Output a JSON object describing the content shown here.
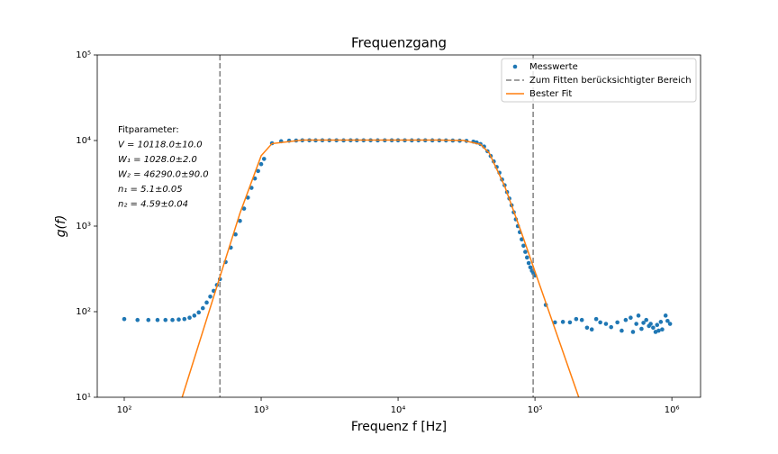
{
  "chart_data": {
    "type": "scatter",
    "title": "Frequenzgang",
    "xlabel": "Frequenz f [Hz]",
    "ylabel": "g(f)",
    "xscale": "log",
    "yscale": "log",
    "xlim": [
      63.5,
      1620000
    ],
    "ylim": [
      10,
      100000
    ],
    "xticks": [
      {
        "value": 100,
        "label": "10²"
      },
      {
        "value": 1000,
        "label": "10³"
      },
      {
        "value": 10000,
        "label": "10⁴"
      },
      {
        "value": 100000,
        "label": "10⁵"
      },
      {
        "value": 1000000,
        "label": "10⁶"
      }
    ],
    "yticks": [
      {
        "value": 10,
        "label": "10¹"
      },
      {
        "value": 100,
        "label": "10²"
      },
      {
        "value": 1000,
        "label": "10³"
      },
      {
        "value": 10000,
        "label": "10⁴"
      },
      {
        "value": 100000,
        "label": "10⁵"
      }
    ],
    "legend": "upper right",
    "annotation": [
      "Fitparameter:",
      "V = 10118.0±10.0",
      "W₁ = 1028.0±2.0",
      "W₂ = 46290.0±90.0",
      "n₁ = 5.1±0.05",
      "n₂ = 4.59±0.04"
    ],
    "series": [
      {
        "name": "Messwerte",
        "type": "scatter",
        "color": "#1f77b4",
        "x": [
          100,
          125,
          150,
          175,
          200,
          225,
          250,
          275,
          300,
          325,
          350,
          375,
          400,
          425,
          450,
          475,
          500,
          550,
          600,
          650,
          700,
          750,
          800,
          850,
          900,
          950,
          1000,
          1050,
          1200,
          1400,
          1600,
          1800,
          2000,
          2250,
          2500,
          2800,
          3150,
          3550,
          4000,
          4500,
          5000,
          5600,
          6300,
          7100,
          8000,
          9000,
          10000,
          11200,
          12600,
          14100,
          15800,
          17800,
          20000,
          22400,
          25100,
          28200,
          31600,
          35500,
          37500,
          40000,
          42500,
          45000,
          47500,
          50000,
          52500,
          55000,
          57500,
          60000,
          62500,
          65000,
          67500,
          70000,
          72500,
          75000,
          77500,
          80000,
          82500,
          85000,
          87500,
          90000,
          92500,
          95000,
          97500,
          100000,
          120000,
          140000,
          160000,
          180000,
          200000,
          220000,
          240000,
          260000,
          280000,
          300000,
          330000,
          360000,
          400000,
          430000,
          460000,
          500000,
          520000,
          550000,
          570000,
          600000,
          620000,
          650000,
          680000,
          700000,
          730000,
          760000,
          780000,
          800000,
          830000,
          850000,
          900000,
          930000,
          970000
        ],
        "values": [
          82,
          80,
          80,
          80,
          80,
          80,
          81,
          82,
          85,
          90,
          98,
          110,
          128,
          150,
          175,
          205,
          240,
          380,
          560,
          800,
          1150,
          1600,
          2150,
          2800,
          3600,
          4400,
          5300,
          6100,
          9300,
          9800,
          9950,
          10000,
          10050,
          10050,
          10040,
          10060,
          10050,
          10050,
          10040,
          10050,
          10060,
          10050,
          10050,
          10040,
          10050,
          10060,
          10050,
          10050,
          10040,
          10050,
          10050,
          10040,
          10030,
          10020,
          10000,
          9950,
          9900,
          9700,
          9500,
          9100,
          8500,
          7500,
          6600,
          5700,
          4900,
          4200,
          3500,
          3000,
          2500,
          2100,
          1750,
          1450,
          1200,
          1000,
          850,
          700,
          590,
          500,
          430,
          370,
          330,
          300,
          280,
          265,
          120,
          75,
          76,
          75,
          82,
          80,
          65,
          62,
          82,
          75,
          72,
          66,
          75,
          60,
          80,
          85,
          58,
          72,
          90,
          63,
          74,
          80,
          68,
          72,
          65,
          58,
          70,
          60,
          76,
          62,
          90,
          78,
          72
        ]
      },
      {
        "name": "Zum Fitten berücksichtigter Bereich",
        "type": "vline",
        "color": "#808080",
        "x": [
          500,
          97000
        ]
      },
      {
        "name": "Bester Fit",
        "type": "line",
        "color": "#ff7f0e",
        "x": [
          200,
          300,
          500,
          700,
          1000,
          1200,
          2000,
          10000,
          20000,
          30000,
          40000,
          46290,
          60000,
          80000,
          100000,
          150000,
          200000,
          300000
        ],
        "values": [
          2.39,
          18.9,
          256,
          1413,
          6635,
          9207,
          10112,
          10118,
          10116,
          10025,
          9006,
          7155,
          2944,
          823,
          295,
          45.8,
          12.2,
          1.9
        ]
      }
    ]
  }
}
